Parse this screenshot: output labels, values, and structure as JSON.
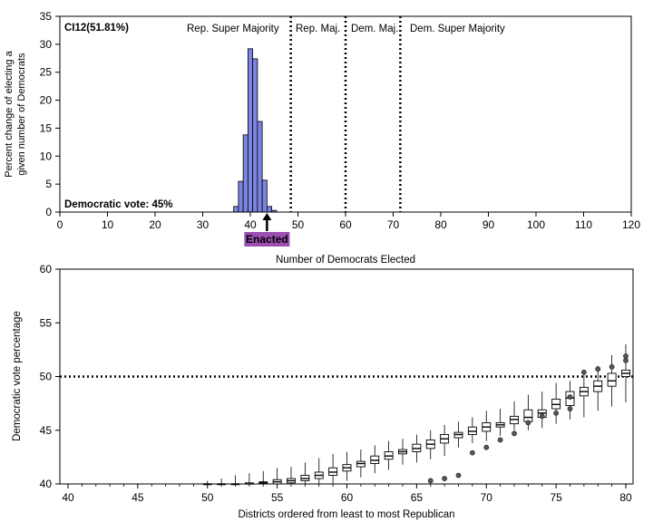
{
  "chart_data": [
    {
      "type": "bar",
      "title": "",
      "annotation_top_left": "CI12(51.81%)",
      "annotation_bottom_left": "Democratic vote: 45%",
      "xlabel": "Number of Democrats Elected",
      "ylabel_line1": "Percent change of electing a",
      "ylabel_line2": "given number of Democrats",
      "xlim": [
        0,
        120
      ],
      "ylim": [
        0,
        35
      ],
      "xticks": [
        0,
        10,
        20,
        30,
        40,
        50,
        60,
        70,
        80,
        90,
        100,
        110,
        120
      ],
      "yticks": [
        0,
        5,
        10,
        15,
        20,
        25,
        30,
        35
      ],
      "grid": false,
      "bar_color": "#7b84e0",
      "histogram": {
        "x": [
          37,
          38,
          39,
          40,
          41,
          42,
          43,
          44,
          45
        ],
        "values": [
          1.0,
          5.5,
          13.8,
          29.2,
          27.4,
          16.2,
          5.7,
          1.0,
          0.3
        ]
      },
      "thresholds": [
        {
          "x": 48.5,
          "label_left": "Rep. Super Majority",
          "label_right": "Rep. Maj."
        },
        {
          "x": 60,
          "label_right": "Dem. Maj."
        },
        {
          "x": 71.5,
          "label_right": "Dem. Super Majority"
        }
      ],
      "enacted": {
        "x": 43.5,
        "label": "Enacted",
        "color": "#9b4fb0"
      }
    },
    {
      "type": "box",
      "title": "",
      "xlabel": "Districts ordered from least to most Republican",
      "ylabel": "Democratic vote percentage",
      "xlim": [
        39,
        80.5
      ],
      "ylim": [
        40,
        60
      ],
      "xticks": [
        40,
        45,
        50,
        55,
        60,
        65,
        70,
        75,
        80
      ],
      "yticks": [
        40,
        45,
        50,
        55,
        60
      ],
      "grid": false,
      "reference_line": 50,
      "boxes": [
        {
          "x": 50,
          "whisker_low": 40.0,
          "q1": 40.0,
          "median": 40.0,
          "q3": 40.0,
          "whisker_high": 40.3,
          "outliers": []
        },
        {
          "x": 51,
          "whisker_low": 40.0,
          "q1": 40.0,
          "median": 40.0,
          "q3": 40.0,
          "whisker_high": 40.5,
          "outliers": []
        },
        {
          "x": 52,
          "whisker_low": 40.0,
          "q1": 40.0,
          "median": 40.0,
          "q3": 40.0,
          "whisker_high": 40.8,
          "outliers": []
        },
        {
          "x": 53,
          "whisker_low": 40.0,
          "q1": 40.0,
          "median": 40.0,
          "q3": 40.1,
          "whisker_high": 41.0,
          "outliers": []
        },
        {
          "x": 54,
          "whisker_low": 40.0,
          "q1": 40.0,
          "median": 40.1,
          "q3": 40.2,
          "whisker_high": 41.2,
          "outliers": []
        },
        {
          "x": 55,
          "whisker_low": 40.0,
          "q1": 40.0,
          "median": 40.2,
          "q3": 40.4,
          "whisker_high": 41.5,
          "outliers": []
        },
        {
          "x": 56,
          "whisker_low": 40.0,
          "q1": 40.1,
          "median": 40.3,
          "q3": 40.5,
          "whisker_high": 41.6,
          "outliers": []
        },
        {
          "x": 57,
          "whisker_low": 40.0,
          "q1": 40.3,
          "median": 40.5,
          "q3": 40.8,
          "whisker_high": 42.0,
          "outliers": []
        },
        {
          "x": 58,
          "whisker_low": 40.0,
          "q1": 40.5,
          "median": 40.8,
          "q3": 41.1,
          "whisker_high": 42.4,
          "outliers": []
        },
        {
          "x": 59,
          "whisker_low": 40.0,
          "q1": 40.8,
          "median": 41.1,
          "q3": 41.5,
          "whisker_high": 42.8,
          "outliers": []
        },
        {
          "x": 60,
          "whisker_low": 40.3,
          "q1": 41.2,
          "median": 41.5,
          "q3": 41.8,
          "whisker_high": 43.0,
          "outliers": []
        },
        {
          "x": 61,
          "whisker_low": 40.6,
          "q1": 41.6,
          "median": 41.9,
          "q3": 42.1,
          "whisker_high": 43.2,
          "outliers": []
        },
        {
          "x": 62,
          "whisker_low": 41.0,
          "q1": 41.9,
          "median": 42.2,
          "q3": 42.6,
          "whisker_high": 43.6,
          "outliers": []
        },
        {
          "x": 63,
          "whisker_low": 41.3,
          "q1": 42.3,
          "median": 42.6,
          "q3": 43.0,
          "whisker_high": 44.0,
          "outliers": []
        },
        {
          "x": 64,
          "whisker_low": 41.8,
          "q1": 42.8,
          "median": 43.0,
          "q3": 43.2,
          "whisker_high": 44.2,
          "outliers": []
        },
        {
          "x": 65,
          "whisker_low": 42.0,
          "q1": 43.0,
          "median": 43.3,
          "q3": 43.7,
          "whisker_high": 44.6,
          "outliers": []
        },
        {
          "x": 66,
          "whisker_low": 42.3,
          "q1": 43.3,
          "median": 43.7,
          "q3": 44.1,
          "whisker_high": 45.0,
          "outliers": [
            40.3
          ]
        },
        {
          "x": 67,
          "whisker_low": 42.6,
          "q1": 43.8,
          "median": 44.2,
          "q3": 44.6,
          "whisker_high": 45.5,
          "outliers": [
            40.5
          ]
        },
        {
          "x": 68,
          "whisker_low": 43.4,
          "q1": 44.3,
          "median": 44.6,
          "q3": 44.8,
          "whisker_high": 45.8,
          "outliers": [
            40.8
          ]
        },
        {
          "x": 69,
          "whisker_low": 43.8,
          "q1": 44.6,
          "median": 44.9,
          "q3": 45.3,
          "whisker_high": 46.2,
          "outliers": [
            42.9
          ]
        },
        {
          "x": 70,
          "whisker_low": 44.0,
          "q1": 44.9,
          "median": 45.3,
          "q3": 45.7,
          "whisker_high": 46.8,
          "outliers": [
            43.4
          ]
        },
        {
          "x": 71,
          "whisker_low": 44.5,
          "q1": 45.3,
          "median": 45.5,
          "q3": 45.7,
          "whisker_high": 47.0,
          "outliers": [
            44.1
          ]
        },
        {
          "x": 72,
          "whisker_low": 45.0,
          "q1": 45.6,
          "median": 46.0,
          "q3": 46.3,
          "whisker_high": 47.7,
          "outliers": [
            44.7
          ]
        },
        {
          "x": 73,
          "whisker_low": 45.0,
          "q1": 45.8,
          "median": 46.2,
          "q3": 46.9,
          "whisker_high": 48.3,
          "outliers": [
            45.7
          ]
        },
        {
          "x": 74,
          "whisker_low": 45.2,
          "q1": 46.2,
          "median": 46.6,
          "q3": 46.9,
          "whisker_high": 48.6,
          "outliers": [
            46.3
          ]
        },
        {
          "x": 75,
          "whisker_low": 45.6,
          "q1": 47.0,
          "median": 47.4,
          "q3": 47.9,
          "whisker_high": 49.4,
          "outliers": [
            46.6
          ]
        },
        {
          "x": 76,
          "whisker_low": 46.0,
          "q1": 47.3,
          "median": 48.0,
          "q3": 48.6,
          "whisker_high": 49.6,
          "outliers": [
            47.0,
            48.1
          ]
        },
        {
          "x": 77,
          "whisker_low": 46.2,
          "q1": 48.2,
          "median": 48.6,
          "q3": 49.0,
          "whisker_high": 50.3,
          "outliers": [
            50.4
          ]
        },
        {
          "x": 78,
          "whisker_low": 46.8,
          "q1": 48.6,
          "median": 49.1,
          "q3": 49.6,
          "whisker_high": 51.0,
          "outliers": [
            50.7
          ]
        },
        {
          "x": 79,
          "whisker_low": 47.2,
          "q1": 49.1,
          "median": 49.6,
          "q3": 50.3,
          "whisker_high": 52.0,
          "outliers": [
            50.9
          ]
        },
        {
          "x": 80,
          "whisker_low": 47.6,
          "q1": 50.0,
          "median": 50.3,
          "q3": 50.6,
          "whisker_high": 53.0,
          "outliers": [
            51.5,
            51.9
          ]
        }
      ]
    }
  ]
}
